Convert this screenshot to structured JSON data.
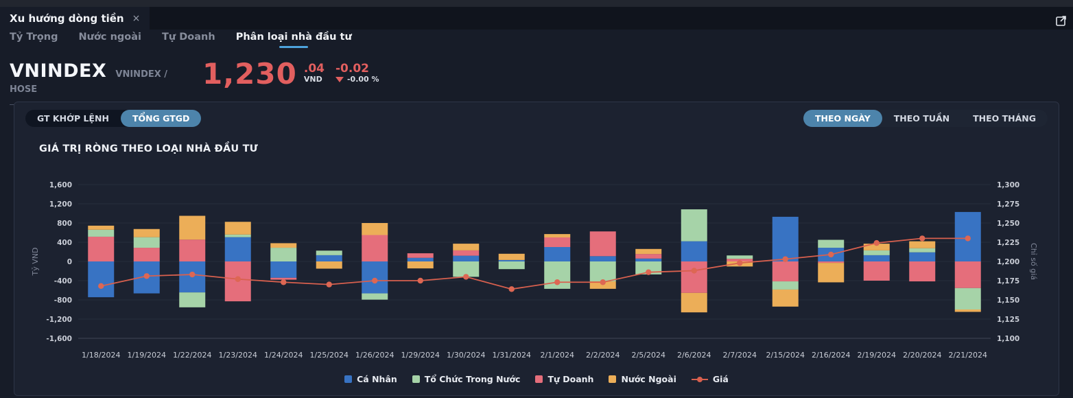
{
  "window": {
    "tab_title": "Xu hướng dòng tiền",
    "close_glyph": "×"
  },
  "nav": {
    "items": [
      {
        "label": "Tỷ Trọng",
        "active": false
      },
      {
        "label": "Nước ngoài",
        "active": false
      },
      {
        "label": "Tự Doanh",
        "active": false
      },
      {
        "label": "Phân loại nhà đầu tư",
        "active": true
      }
    ]
  },
  "instrument": {
    "name": "VNINDEX",
    "code": "VNINDEX / HOSE",
    "price_int": "1,230",
    "price_dec": ".04",
    "currency": "VND",
    "change": "-0.02",
    "change_pct": "-0.00 %"
  },
  "toolbar": {
    "left": [
      {
        "label": "GT KHỚP LỆNH",
        "active": false
      },
      {
        "label": "TỔNG GTGD",
        "active": true
      }
    ],
    "right": [
      {
        "label": "THEO NGÀY",
        "active": true
      },
      {
        "label": "THEO TUẦN",
        "active": false
      },
      {
        "label": "THEO THÁNG",
        "active": false
      }
    ]
  },
  "chart_data": {
    "type": "bar",
    "title": "GIÁ TRỊ RÒNG THEO LOẠI NHÀ ĐẦU TƯ",
    "ylabel_left": "Tỷ VND",
    "ylabel_right": "Chỉ số giá",
    "grid": true,
    "legend_position": "bottom",
    "categories": [
      "1/18/2024",
      "1/19/2024",
      "1/22/2024",
      "1/23/2024",
      "1/24/2024",
      "1/25/2024",
      "1/26/2024",
      "1/29/2024",
      "1/30/2024",
      "1/31/2024",
      "2/1/2024",
      "2/2/2024",
      "2/5/2024",
      "2/6/2024",
      "2/7/2024",
      "2/15/2024",
      "2/16/2024",
      "2/19/2024",
      "2/20/2024",
      "2/21/2024"
    ],
    "series": [
      {
        "name": "Cá Nhân",
        "type": "bar",
        "color": "#3873c3",
        "values": [
          -745,
          -665,
          -645,
          505,
          -340,
          130,
          -665,
          75,
          120,
          30,
          300,
          110,
          60,
          420,
          0,
          930,
          285,
          130,
          190,
          1030
        ]
      },
      {
        "name": "Tự Doanh",
        "type": "bar",
        "color": "#e56e7b",
        "values": [
          515,
          285,
          455,
          -830,
          -40,
          0,
          550,
          95,
          110,
          0,
          200,
          515,
          95,
          -655,
          55,
          -415,
          -30,
          -400,
          -415,
          -555
        ]
      },
      {
        "name": "Tổ Chức Trong Nước",
        "type": "bar",
        "color": "#a6d3a8",
        "values": [
          145,
          220,
          -310,
          55,
          285,
          95,
          -130,
          0,
          -320,
          -160,
          -570,
          -415,
          -270,
          665,
          70,
          -170,
          165,
          100,
          85,
          -445
        ]
      },
      {
        "name": "Nước Ngoài",
        "type": "bar",
        "color": "#ecae58",
        "values": [
          85,
          170,
          495,
          265,
          95,
          -150,
          250,
          -145,
          140,
          130,
          70,
          -155,
          105,
          -405,
          -105,
          -355,
          -405,
          140,
          145,
          -50
        ]
      }
    ],
    "line_series": {
      "name": "Giá",
      "type": "line",
      "color": "#d8604e",
      "values": [
        1168,
        1181,
        1183,
        1177,
        1173,
        1170,
        1175,
        1175,
        1180,
        1164,
        1173,
        1173,
        1186,
        1188,
        1198,
        1203,
        1209,
        1224,
        1230,
        1230
      ]
    },
    "left_axis": {
      "min": -1600,
      "max": 1600,
      "ticks": [
        "1,600",
        "1,200",
        "800",
        "400",
        "0",
        "-400",
        "-800",
        "-1,200",
        "-1,600"
      ]
    },
    "right_axis": {
      "min": 1100,
      "max": 1300,
      "ticks": [
        "1,300",
        "1,275",
        "1,250",
        "1,225",
        "1,200",
        "1,175",
        "1,150",
        "1,125",
        "1,100"
      ]
    },
    "legend_items": [
      {
        "name": "Cá Nhân",
        "color": "#3873c3",
        "type": "swatch"
      },
      {
        "name": "Tổ Chức Trong Nước",
        "color": "#a6d3a8",
        "type": "swatch"
      },
      {
        "name": "Tự Doanh",
        "color": "#e56e7b",
        "type": "swatch"
      },
      {
        "name": "Nước Ngoài",
        "color": "#ecae58",
        "type": "swatch"
      },
      {
        "name": "Giá",
        "color": "#d8604e",
        "type": "line"
      }
    ]
  }
}
